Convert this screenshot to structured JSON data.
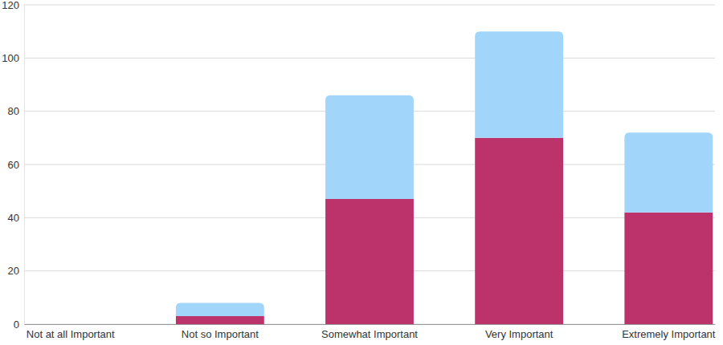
{
  "chart_data": {
    "type": "bar",
    "categories": [
      "Not at all Important",
      "Not so Important",
      "Somewhat Important",
      "Very Important",
      "Extremely Important"
    ],
    "series": [
      {
        "color": "#bc326b",
        "values": [
          0,
          3,
          47,
          70,
          42
        ]
      },
      {
        "color": "#a1d6fa",
        "values": [
          0,
          5,
          39,
          40,
          30
        ]
      }
    ],
    "ylim": [
      0,
      120
    ],
    "yticks": [
      0,
      20,
      40,
      60,
      80,
      100,
      120
    ],
    "grid": true,
    "stacked": true
  }
}
